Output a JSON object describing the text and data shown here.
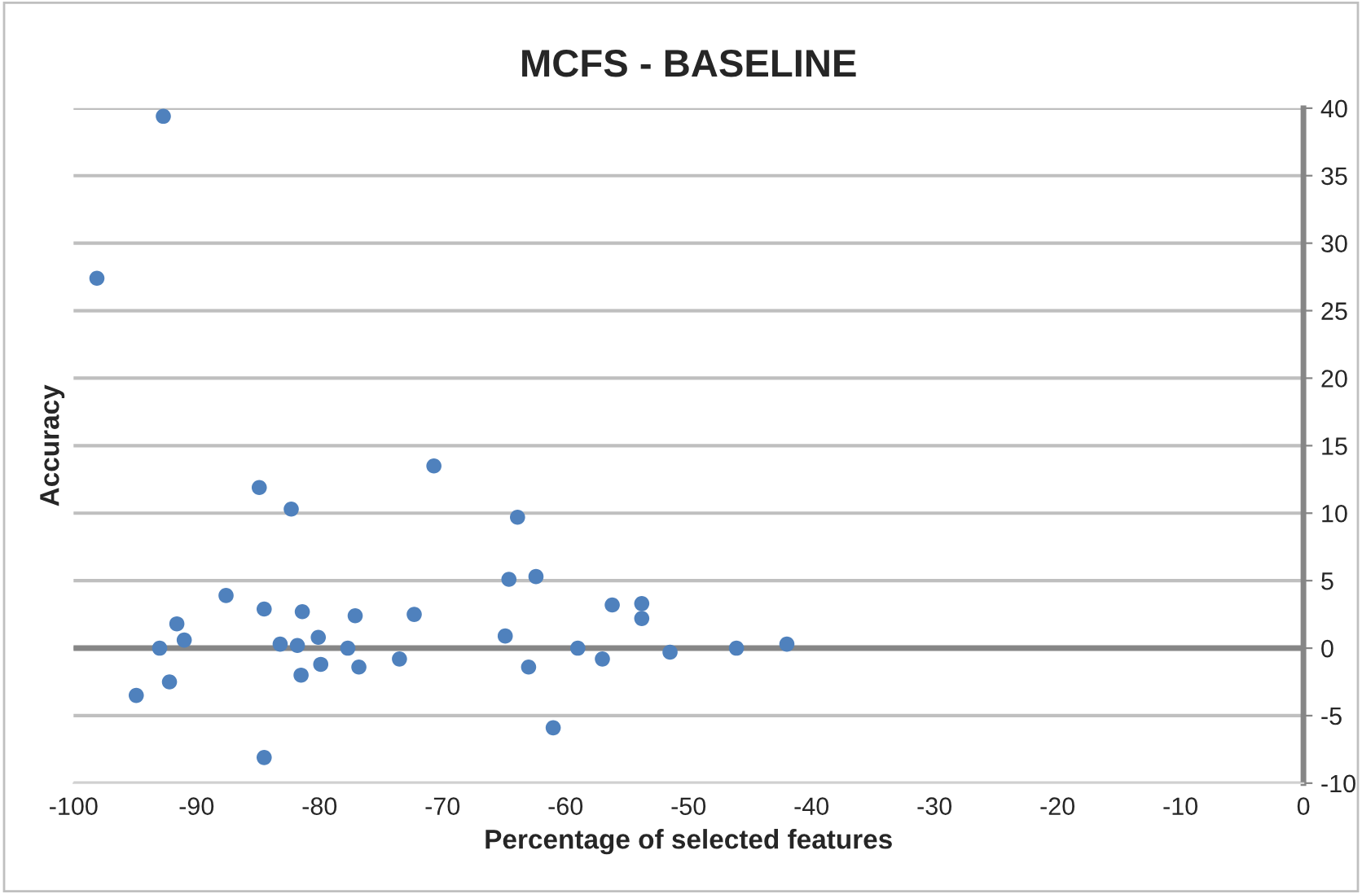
{
  "chart_data": {
    "type": "scatter",
    "title": "MCFS - BASELINE",
    "xlabel": "Percentage of selected features",
    "ylabel": "Accuracy",
    "x": [
      -92.7,
      -98.1,
      -70.7,
      -84.9,
      -82.3,
      -87.6,
      -84.5,
      -81.4,
      -77.1,
      -72.3,
      -91.6,
      -91.0,
      -93.0,
      -83.2,
      -81.8,
      -80.1,
      -77.7,
      -79.9,
      -76.8,
      -73.5,
      -81.5,
      -92.2,
      -94.9,
      -84.5,
      -63.9,
      -64.6,
      -62.4,
      -56.2,
      -53.8,
      -53.8,
      -64.9,
      -59.0,
      -57.0,
      -63.0,
      -51.5,
      -46.1,
      -42.0,
      -61.0
    ],
    "values": [
      39.4,
      27.4,
      13.5,
      11.9,
      10.3,
      3.9,
      2.9,
      2.7,
      2.4,
      2.5,
      1.8,
      0.6,
      0.0,
      0.3,
      0.2,
      0.8,
      0.0,
      -1.2,
      -1.4,
      -0.8,
      -2.0,
      -2.5,
      -3.5,
      -8.1,
      9.7,
      5.1,
      5.3,
      3.2,
      3.3,
      2.2,
      0.9,
      0.0,
      -0.8,
      -1.4,
      -0.3,
      0.0,
      0.3,
      -5.9
    ],
    "color": "#4f81bd",
    "marker": "circle",
    "xlim": [
      -100,
      0
    ],
    "xticks": [
      -100,
      -90,
      -80,
      -70,
      -60,
      -50,
      -40,
      -30,
      -20,
      -10,
      0
    ],
    "ylim": [
      -10,
      40
    ],
    "yticks": [
      -10,
      -5,
      0,
      5,
      10,
      15,
      20,
      25,
      30,
      35,
      40
    ],
    "grid": "y",
    "legend": false,
    "ref_lines": [
      {
        "axis": "y",
        "value": 0,
        "color": "#868686"
      }
    ]
  }
}
